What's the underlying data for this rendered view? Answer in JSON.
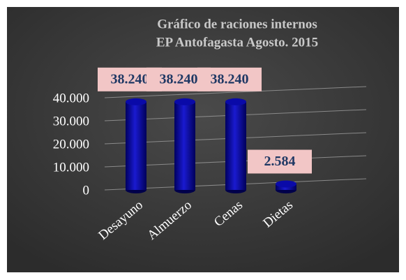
{
  "chart_data": {
    "type": "bar",
    "title": [
      "Gráfico de raciones internos",
      "EP Antofagasta  Agosto. 2015"
    ],
    "categories": [
      "Desayuno",
      "Almuerzo",
      "Cenas",
      "Dietas"
    ],
    "values": [
      38240,
      38240,
      38240,
      2584
    ],
    "value_labels": [
      "38.240",
      "38.240",
      "38.240",
      "2.584"
    ],
    "color": "#0a0aa8",
    "ylim": [
      0,
      40000
    ],
    "yticks": [
      0,
      {
        "value": 10000,
        "label": "10.000"
      },
      {
        "value": 20000,
        "label": "20.000"
      },
      {
        "value": 30000,
        "label": "30.000"
      },
      {
        "value": 40000,
        "label": "40.000"
      }
    ],
    "grid": true
  }
}
